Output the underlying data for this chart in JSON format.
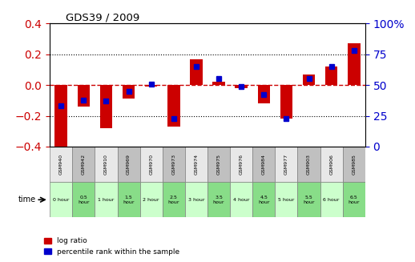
{
  "title": "GDS39 / 2009",
  "samples": [
    "GSM940",
    "GSM942",
    "GSM910",
    "GSM969",
    "GSM970",
    "GSM973",
    "GSM974",
    "GSM975",
    "GSM976",
    "GSM984",
    "GSM977",
    "GSM903",
    "GSM906",
    "GSM985"
  ],
  "time_labels": [
    "0 hour",
    "0.5\nhour",
    "1 hour",
    "1.5\nhour",
    "2 hour",
    "2.5\nhour",
    "3 hour",
    "3.5\nhour",
    "4 hour",
    "4.5\nhour",
    "5 hour",
    "5.5\nhour",
    "6 hour",
    "6.5\nhour"
  ],
  "log_ratio": [
    -0.4,
    -0.14,
    -0.28,
    -0.09,
    -0.01,
    -0.27,
    0.17,
    0.02,
    -0.02,
    -0.12,
    -0.22,
    0.07,
    0.12,
    0.27
  ],
  "percentile": [
    33,
    38,
    37,
    45,
    51,
    23,
    65,
    55,
    49,
    42,
    23,
    55,
    65,
    78
  ],
  "bar_color": "#cc0000",
  "dot_color": "#0000cc",
  "bg_color_light": "#e8e8e8",
  "bg_color_dark": "#c0c0c0",
  "time_color_light": "#ccffcc",
  "time_color_dark": "#88dd88",
  "ylim_left": [
    -0.4,
    0.4
  ],
  "ylim_right": [
    0,
    100
  ],
  "yticks_left": [
    -0.4,
    -0.2,
    0.0,
    0.2,
    0.4
  ],
  "yticks_right": [
    0,
    25,
    50,
    75,
    100
  ],
  "bar_tick_color": "#cc0000",
  "right_tick_color": "#0000cc",
  "grid_dotted": [
    -0.2,
    0.2
  ],
  "grid_dashed_zero": 0.0,
  "legend_log": "log ratio",
  "legend_pct": "percentile rank within the sample"
}
